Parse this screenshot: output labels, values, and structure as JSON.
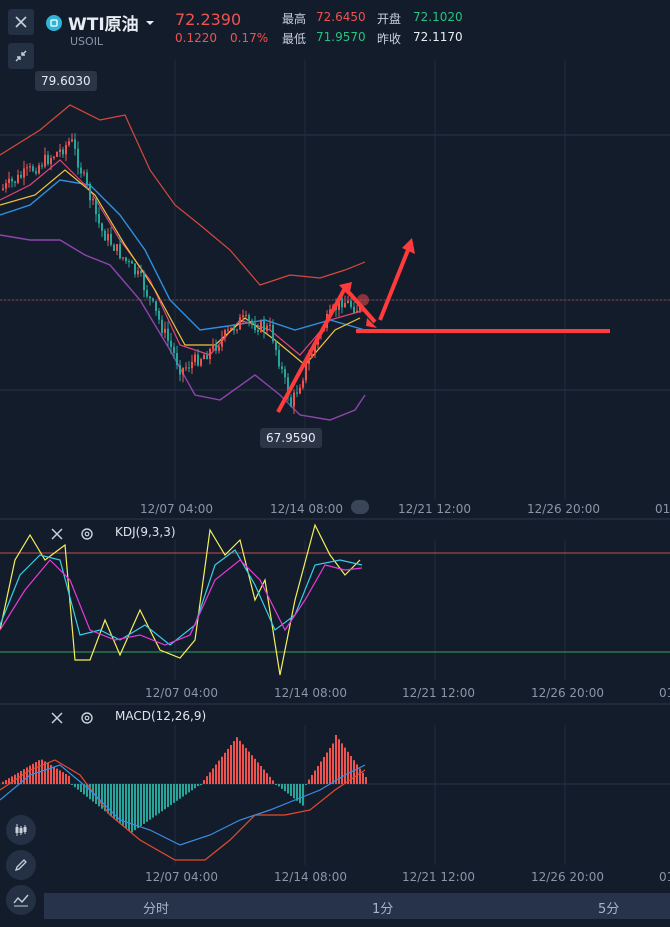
{
  "header": {
    "symbol_name": "WTI原油",
    "symbol_code": "USOIL",
    "price": "72.2390",
    "change": "0.1220",
    "change_pct": "0.17%",
    "high_label": "最高",
    "high_value": "72.6450",
    "low_label": "最低",
    "low_value": "71.9570",
    "open_label": "开盘",
    "open_value": "72.1020",
    "prev_close_label": "昨收",
    "prev_close_value": "72.1170"
  },
  "main_chart": {
    "max_tag": "79.6030",
    "min_tag": "67.9590",
    "x_labels": [
      "12/07 04:00",
      "12/14 08:00",
      "12/21 12:00",
      "12/26 20:00",
      "01"
    ]
  },
  "kdj_pane": {
    "label": "KDJ(9,3,3)",
    "x_labels": [
      "12/07 04:00",
      "12/14 08:00",
      "12/21 12:00",
      "12/26 20:00",
      "01"
    ]
  },
  "macd_pane": {
    "label": "MACD(12,26,9)",
    "x_labels": [
      "12/07 04:00",
      "12/14 08:00",
      "12/21 12:00",
      "12/26 20:00",
      "01"
    ]
  },
  "timeframes": [
    "分时",
    "1分",
    "5分"
  ],
  "colors": {
    "up": "#ef5350",
    "down": "#26a69a",
    "background": "#131c2b",
    "annotation": "#ff3b3b"
  },
  "icons": [
    "close-icon",
    "collapse-icon",
    "candlestick-icon",
    "pencil-icon",
    "indicator-icon",
    "gear-icon"
  ]
}
